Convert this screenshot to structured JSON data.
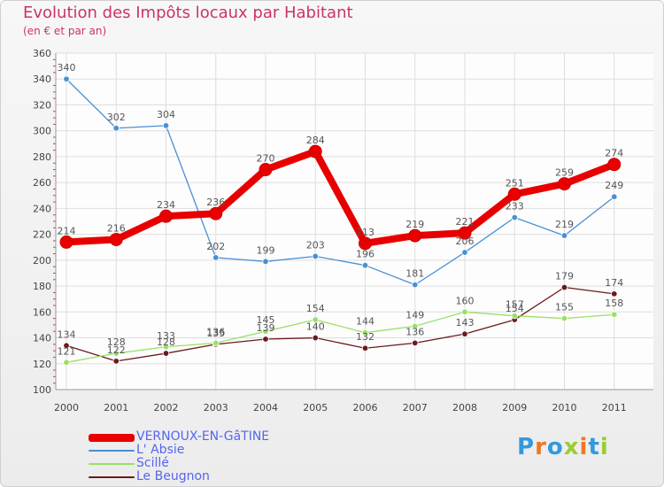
{
  "title": "Evolution des Impôts locaux par Habitant",
  "subtitle": "(en € et par an)",
  "logo_text": "Proxiti",
  "chart_data": {
    "type": "line",
    "title": "Evolution des Impôts locaux par Habitant",
    "subtitle": "(en € et par an)",
    "xlabel": "",
    "ylabel": "",
    "categories": [
      "2000",
      "2001",
      "2002",
      "2003",
      "2004",
      "2005",
      "2006",
      "2007",
      "2008",
      "2009",
      "2010",
      "2011"
    ],
    "ylim": [
      100,
      360
    ],
    "yticks": [
      100,
      120,
      140,
      160,
      180,
      200,
      220,
      240,
      260,
      280,
      300,
      320,
      340,
      360
    ],
    "grid": true,
    "legend_position": "bottom-left",
    "series": [
      {
        "name": "VERNOUX-EN-GâTINE",
        "color": "#e80000",
        "values": [
          214,
          216,
          234,
          236,
          270,
          284,
          213,
          219,
          221,
          251,
          259,
          274
        ]
      },
      {
        "name": "L' Absie",
        "color": "#4a8fd4",
        "values": [
          340,
          302,
          304,
          202,
          199,
          203,
          196,
          181,
          206,
          233,
          219,
          249
        ]
      },
      {
        "name": "Scillé",
        "color": "#99e066",
        "values": [
          121,
          128,
          133,
          136,
          145,
          154,
          144,
          149,
          160,
          157,
          155,
          158
        ]
      },
      {
        "name": "Le Beugnon",
        "color": "#6b1a1a",
        "values": [
          134,
          122,
          128,
          135,
          139,
          140,
          132,
          136,
          143,
          154,
          179,
          174
        ]
      }
    ]
  }
}
